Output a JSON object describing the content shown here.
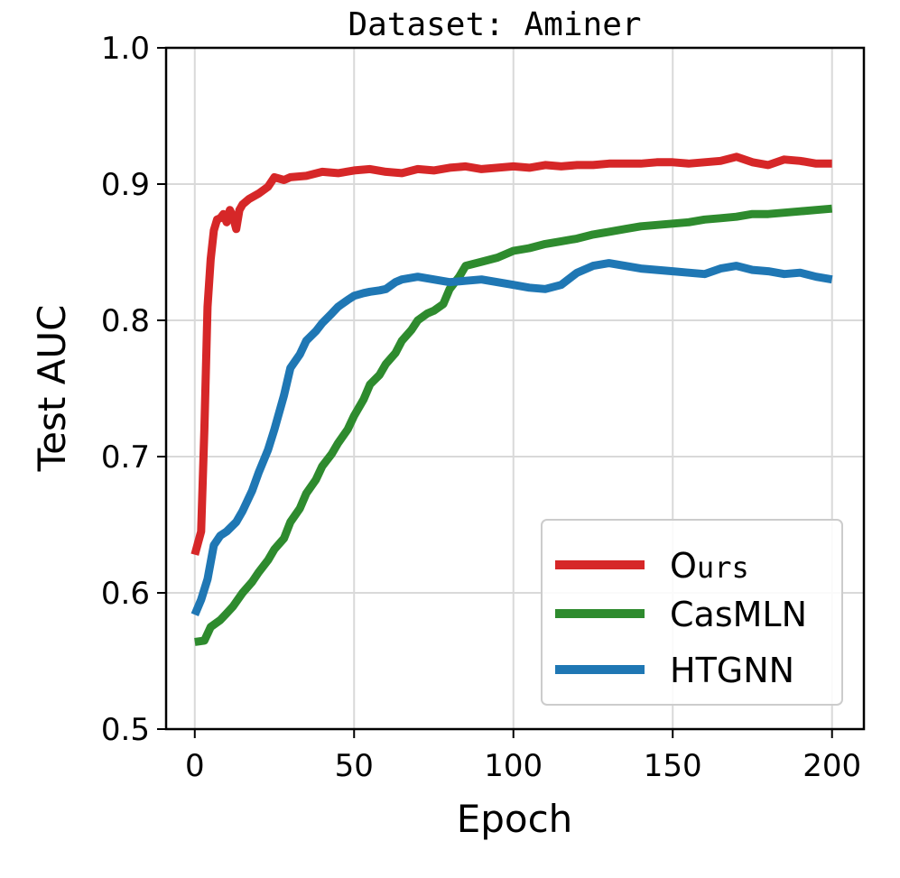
{
  "chart_data": {
    "type": "line",
    "title": "Dataset: Aminer",
    "xlabel": "Epoch",
    "ylabel": "Test AUC",
    "xlim": [
      -9,
      210
    ],
    "ylim": [
      0.5,
      1.0
    ],
    "xticks": [
      0,
      50,
      100,
      150,
      200
    ],
    "yticks": [
      0.5,
      0.6,
      0.7,
      0.8,
      0.9,
      1.0
    ],
    "grid": true,
    "legend_position": "lower-right",
    "series": [
      {
        "name": "Ours",
        "name_first": "O",
        "name_rest": "urs",
        "color": "#d62728",
        "x": [
          0,
          2,
          3,
          4,
          5,
          6,
          7,
          8,
          9,
          10,
          11,
          12,
          13,
          14,
          15,
          17,
          20,
          23,
          25,
          28,
          30,
          35,
          40,
          45,
          50,
          55,
          60,
          65,
          70,
          75,
          80,
          85,
          90,
          95,
          100,
          105,
          110,
          115,
          120,
          125,
          130,
          135,
          140,
          145,
          150,
          155,
          160,
          165,
          170,
          175,
          180,
          185,
          190,
          195,
          200
        ],
        "y": [
          0.628,
          0.645,
          0.72,
          0.81,
          0.845,
          0.866,
          0.874,
          0.875,
          0.878,
          0.872,
          0.881,
          0.876,
          0.867,
          0.881,
          0.885,
          0.889,
          0.893,
          0.898,
          0.905,
          0.903,
          0.905,
          0.906,
          0.909,
          0.908,
          0.91,
          0.911,
          0.909,
          0.908,
          0.911,
          0.91,
          0.912,
          0.913,
          0.911,
          0.912,
          0.913,
          0.912,
          0.914,
          0.913,
          0.914,
          0.914,
          0.915,
          0.915,
          0.915,
          0.916,
          0.916,
          0.915,
          0.916,
          0.917,
          0.92,
          0.916,
          0.914,
          0.918,
          0.917,
          0.915,
          0.915
        ]
      },
      {
        "name": "CasMLN",
        "color": "#2e8b2e",
        "x": [
          0,
          3,
          5,
          8,
          10,
          12,
          15,
          18,
          20,
          23,
          25,
          28,
          30,
          33,
          35,
          38,
          40,
          43,
          45,
          48,
          50,
          53,
          55,
          58,
          60,
          63,
          65,
          68,
          70,
          73,
          75,
          78,
          80,
          83,
          85,
          90,
          95,
          100,
          105,
          110,
          115,
          120,
          125,
          130,
          135,
          140,
          145,
          150,
          155,
          160,
          165,
          170,
          175,
          180,
          185,
          190,
          195,
          200
        ],
        "y": [
          0.564,
          0.565,
          0.575,
          0.58,
          0.585,
          0.59,
          0.6,
          0.608,
          0.615,
          0.624,
          0.632,
          0.64,
          0.652,
          0.662,
          0.673,
          0.683,
          0.693,
          0.702,
          0.71,
          0.72,
          0.73,
          0.742,
          0.753,
          0.76,
          0.768,
          0.776,
          0.785,
          0.793,
          0.8,
          0.805,
          0.807,
          0.812,
          0.823,
          0.832,
          0.84,
          0.843,
          0.846,
          0.851,
          0.853,
          0.856,
          0.858,
          0.86,
          0.863,
          0.865,
          0.867,
          0.869,
          0.87,
          0.871,
          0.872,
          0.874,
          0.875,
          0.876,
          0.878,
          0.878,
          0.879,
          0.88,
          0.881,
          0.882
        ]
      },
      {
        "name": "HTGNN",
        "color": "#1f77b4",
        "x": [
          0,
          2,
          4,
          6,
          8,
          10,
          13,
          15,
          18,
          20,
          23,
          25,
          28,
          30,
          33,
          35,
          38,
          40,
          43,
          45,
          48,
          50,
          53,
          55,
          58,
          60,
          63,
          65,
          70,
          75,
          80,
          85,
          90,
          95,
          100,
          105,
          110,
          115,
          120,
          125,
          130,
          135,
          140,
          145,
          150,
          155,
          160,
          165,
          170,
          175,
          180,
          185,
          190,
          195,
          200
        ],
        "y": [
          0.584,
          0.595,
          0.61,
          0.635,
          0.642,
          0.645,
          0.652,
          0.66,
          0.675,
          0.688,
          0.705,
          0.72,
          0.745,
          0.765,
          0.775,
          0.785,
          0.792,
          0.798,
          0.805,
          0.81,
          0.815,
          0.818,
          0.82,
          0.821,
          0.822,
          0.823,
          0.828,
          0.83,
          0.832,
          0.83,
          0.828,
          0.829,
          0.83,
          0.828,
          0.826,
          0.824,
          0.823,
          0.826,
          0.835,
          0.84,
          0.842,
          0.84,
          0.838,
          0.837,
          0.836,
          0.835,
          0.834,
          0.838,
          0.84,
          0.837,
          0.836,
          0.834,
          0.835,
          0.832,
          0.83
        ]
      }
    ]
  }
}
